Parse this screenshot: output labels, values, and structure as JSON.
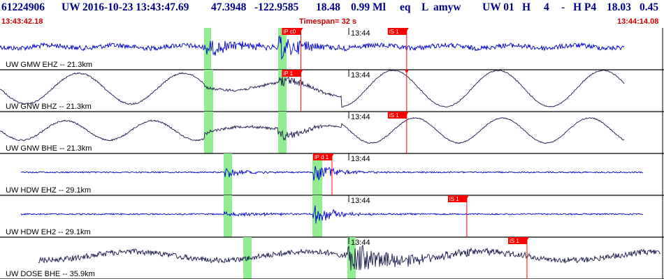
{
  "header": {
    "event_id": "61224906",
    "network": "UW",
    "datetime": "2016-10-23 13:43:47.69",
    "latitude": "47.3948",
    "longitude": "-122.9585",
    "depth": "18.48",
    "magnitude": "0.99 Ml",
    "event_type": "eq",
    "review_flag": "L",
    "analyst": "amyw",
    "solution_source": "UW 01",
    "solution_quality": "H",
    "num_phases": "4",
    "dash": "-",
    "processing": "H P4",
    "extra_1": "18.03",
    "extra_2": "0.45"
  },
  "time_bar": {
    "start_time": "13:43:42.18",
    "timespan": "Timespan=  32 s",
    "end_time": "13:44:14.08"
  },
  "colors": {
    "header_text": "#00008b",
    "time_text": "#cc0000",
    "pick_marker": "#ff0000",
    "window_highlight": "#90ee90",
    "trace_blue": "#0000cc",
    "trace_dark": "#1a1a4d"
  },
  "panels": [
    {
      "label": "UW GMW EHZ -- 21.3km",
      "tick_label": "13:44",
      "trace_color": "#0000cc",
      "picks": [
        {
          "label": "iP c0",
          "time_s": 14.7
        },
        {
          "label": "iS 1",
          "time_s": 19.8
        }
      ]
    },
    {
      "label": "UW GNW BHZ -- 21.3km",
      "tick_label": "13:44",
      "trace_color": "#1a1a4d",
      "picks": [
        {
          "label": "iP 1",
          "time_s": 14.7
        },
        {
          "label": "",
          "time_s": 19.8
        }
      ]
    },
    {
      "label": "UW GNW BHE -- 21.3km",
      "tick_label": "13:44",
      "trace_color": "#1a1a4d",
      "picks": [
        {
          "label": "iS 1",
          "time_s": 19.8
        }
      ]
    },
    {
      "label": "UW HDW EHZ -- 29.1km",
      "tick_label": "13:44",
      "trace_color": "#0000cc",
      "picks": [
        {
          "label": "iP d 1",
          "time_s": 16.2
        }
      ]
    },
    {
      "label": "UW HDW EH2 -- 29.1km",
      "tick_label": "13:44",
      "trace_color": "#0000cc",
      "picks": [
        {
          "label": "iS 1",
          "time_s": 22.7
        }
      ]
    },
    {
      "label": "UW DOSE BHE -- 35.9km",
      "tick_label": "13:44",
      "trace_color": "#1a1a4d",
      "picks": [
        {
          "label": "iS 1",
          "time_s": 25.6
        }
      ]
    }
  ]
}
